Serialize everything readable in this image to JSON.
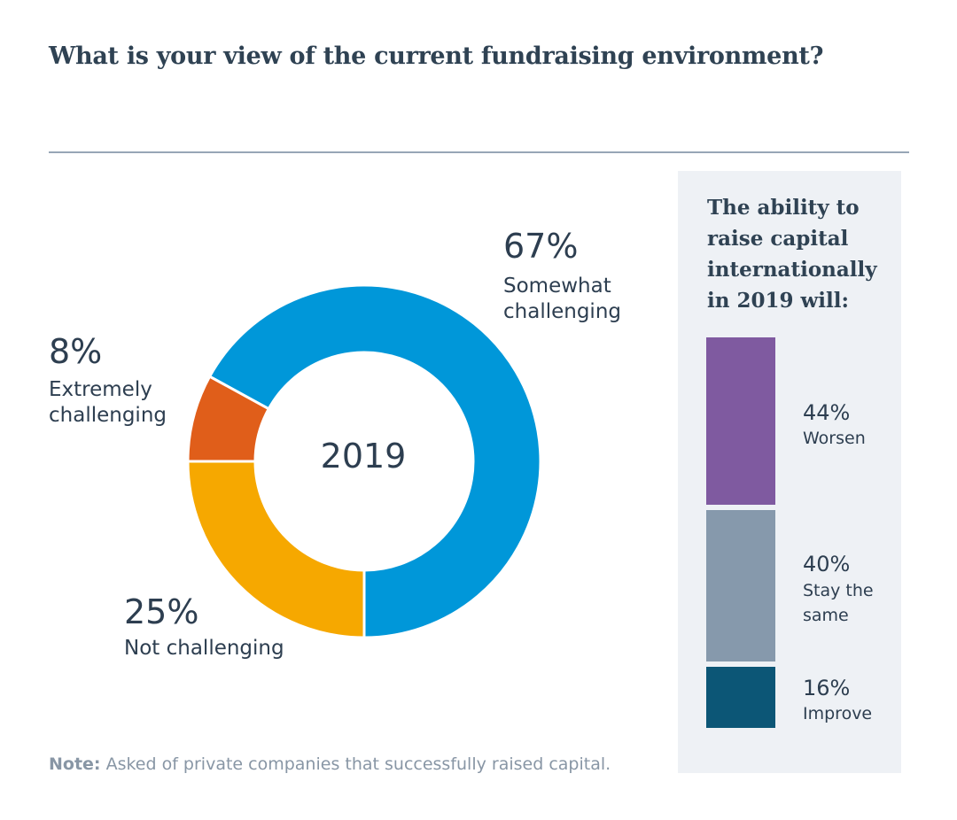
{
  "title": "What is your view of the current fundraising environment?",
  "colors": {
    "somewhat": "#0097d9",
    "extremely": "#e05e1a",
    "not": "#f6a800",
    "worsen": "#7f5aa0",
    "same": "#8699ac",
    "improve": "#0c5676",
    "panel_bg": "#eef1f5",
    "text": "#2d3e50"
  },
  "chart_data": [
    {
      "type": "pie",
      "variant": "donut",
      "center_label": "2019",
      "categories": [
        "Somewhat challenging",
        "Extremely challenging",
        "Not challenging"
      ],
      "values": [
        67,
        8,
        25
      ],
      "labels": [
        {
          "pct": "67%",
          "line1": "Somewhat",
          "line2": "challenging"
        },
        {
          "pct": "8%",
          "line1": "Extremely",
          "line2": "challenging"
        },
        {
          "pct": "25%",
          "line1": "Not challenging",
          "line2": ""
        }
      ]
    },
    {
      "type": "bar",
      "variant": "stacked-100",
      "title": "The ability to raise capital internationally in 2019 will:",
      "title_lines": [
        "The ability to",
        "raise capital",
        "internationally",
        "in 2019 will:"
      ],
      "categories": [
        "Worsen",
        "Stay the same",
        "Improve"
      ],
      "values": [
        44,
        40,
        16
      ],
      "labels": [
        {
          "pct": "44%",
          "line1": "Worsen",
          "line2": ""
        },
        {
          "pct": "40%",
          "line1": "Stay the",
          "line2": "same"
        },
        {
          "pct": "16%",
          "line1": "Improve",
          "line2": ""
        }
      ]
    }
  ],
  "note": {
    "label": "Note:",
    "text": " Asked of private companies that successfully raised capital."
  }
}
